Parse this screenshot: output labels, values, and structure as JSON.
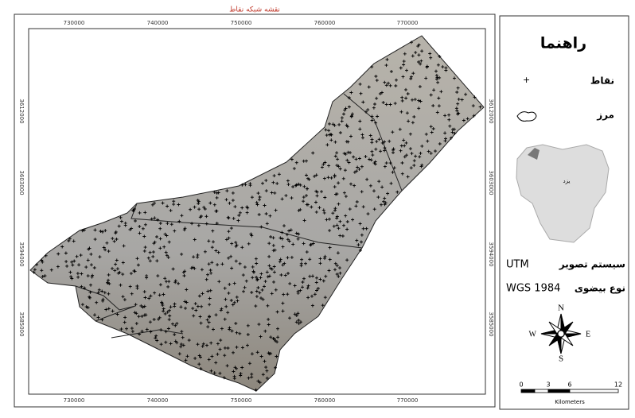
{
  "map": {
    "title": "نقشه شبکه نقاط",
    "x_labels": [
      "730000",
      "740000",
      "750000",
      "760000",
      "770000"
    ],
    "y_labels": [
      "3612000",
      "3603000",
      "3594000",
      "3585000"
    ],
    "legend": {
      "title": "راهنما",
      "points": "نقاط",
      "boundary": "مرز",
      "province": "یزد",
      "projection_label": "سیستم تصویر",
      "projection": "UTM",
      "ellipsoid_label": "نوع بیضوی",
      "ellipsoid": "WGS 1984",
      "compass": {
        "n": "N",
        "s": "S",
        "w": "W",
        "e": "E"
      },
      "scale": [
        "0",
        "3",
        "6",
        "12"
      ],
      "scale_unit": "Kilometers"
    }
  }
}
